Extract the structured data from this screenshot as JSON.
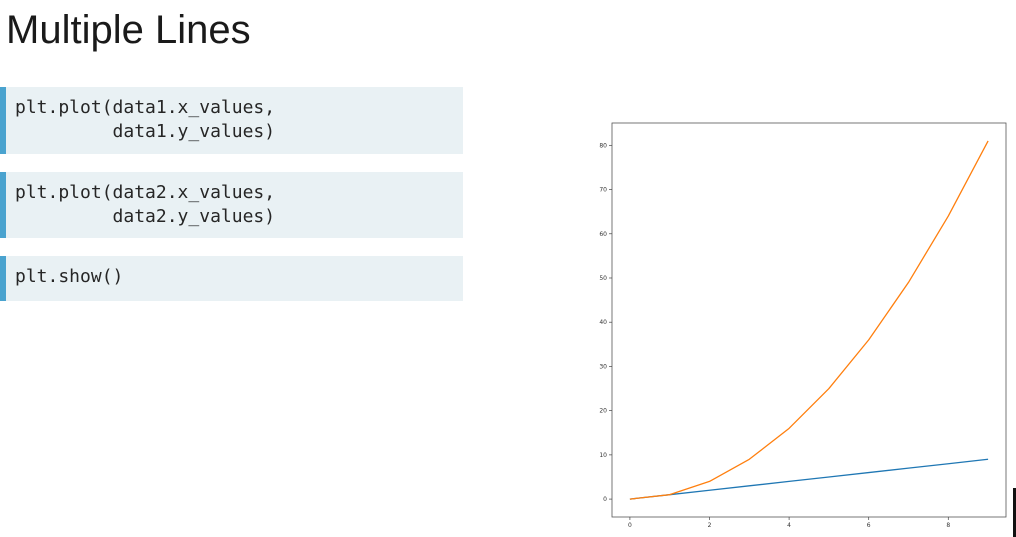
{
  "slide": {
    "title": "Multiple Lines"
  },
  "code_blocks": [
    {
      "lines": [
        "plt.plot(data1.x_values,",
        "         data1.y_values)"
      ]
    },
    {
      "lines": [
        "plt.plot(data2.x_values,",
        "         data2.y_values)"
      ]
    },
    {
      "lines": [
        "plt.show()"
      ]
    }
  ],
  "chart_data": {
    "type": "line",
    "title": "",
    "xlabel": "",
    "ylabel": "",
    "xlim": [
      -0.45,
      9.45
    ],
    "ylim": [
      -4.05,
      85.05
    ],
    "x_ticks": [
      0,
      2,
      4,
      6,
      8
    ],
    "y_ticks": [
      0,
      10,
      20,
      30,
      40,
      50,
      60,
      70,
      80
    ],
    "grid": false,
    "legend": "none",
    "series": [
      {
        "name": "data1",
        "color": "#1f77b4",
        "x": [
          0,
          1,
          2,
          3,
          4,
          5,
          6,
          7,
          8,
          9
        ],
        "y": [
          0,
          1,
          2,
          3,
          4,
          5,
          6,
          7,
          8,
          9
        ]
      },
      {
        "name": "data2",
        "color": "#ff7f0e",
        "x": [
          0,
          1,
          2,
          3,
          4,
          5,
          6,
          7,
          8,
          9
        ],
        "y": [
          0,
          1,
          4,
          9,
          16,
          25,
          36,
          49,
          64,
          81
        ]
      }
    ]
  }
}
